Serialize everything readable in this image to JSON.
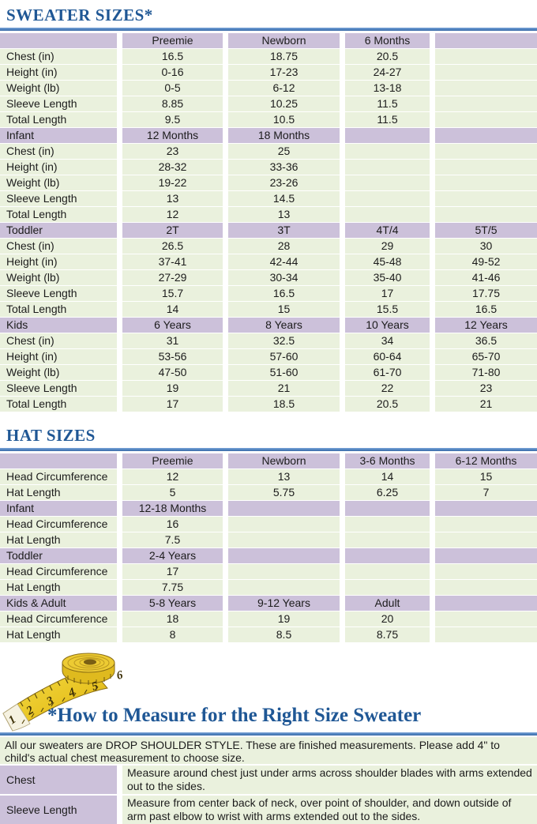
{
  "colors": {
    "heading_text": "#1F5795",
    "rule_blue": "#4F81BD",
    "band_purple": "#CCC1DA",
    "cell_green": "#EAF1DD",
    "tape_yellow": "#EDCB33"
  },
  "sweater": {
    "title": "SWEATER SIZES*",
    "measure_labels": [
      "Chest (in)",
      "Height (in)",
      "Weight (lb)",
      "Sleeve Length",
      "Total Length"
    ],
    "groups": [
      {
        "band_label": "",
        "sizes": [
          "Preemie",
          "Newborn",
          "6 Months",
          ""
        ],
        "values": [
          [
            "16.5",
            "18.75",
            "20.5",
            ""
          ],
          [
            "0-16",
            "17-23",
            "24-27",
            ""
          ],
          [
            "0-5",
            "6-12",
            "13-18",
            ""
          ],
          [
            "8.85",
            "10.25",
            "11.5",
            ""
          ],
          [
            "9.5",
            "10.5",
            "11.5",
            ""
          ]
        ]
      },
      {
        "band_label": "Infant",
        "sizes": [
          "12 Months",
          "18 Months",
          "",
          ""
        ],
        "values": [
          [
            "23",
            "25",
            "",
            ""
          ],
          [
            "28-32",
            "33-36",
            "",
            ""
          ],
          [
            "19-22",
            "23-26",
            "",
            ""
          ],
          [
            "13",
            "14.5",
            "",
            ""
          ],
          [
            "12",
            "13",
            "",
            ""
          ]
        ]
      },
      {
        "band_label": "Toddler",
        "sizes": [
          "2T",
          "3T",
          "4T/4",
          "5T/5"
        ],
        "values": [
          [
            "26.5",
            "28",
            "29",
            "30"
          ],
          [
            "37-41",
            "42-44",
            "45-48",
            "49-52"
          ],
          [
            "27-29",
            "30-34",
            "35-40",
            "41-46"
          ],
          [
            "15.7",
            "16.5",
            "17",
            "17.75"
          ],
          [
            "14",
            "15",
            "15.5",
            "16.5"
          ]
        ]
      },
      {
        "band_label": "Kids",
        "sizes": [
          "6 Years",
          "8 Years",
          "10 Years",
          "12 Years"
        ],
        "values": [
          [
            "31",
            "32.5",
            "34",
            "36.5"
          ],
          [
            "53-56",
            "57-60",
            "60-64",
            "65-70"
          ],
          [
            "47-50",
            "51-60",
            "61-70",
            "71-80"
          ],
          [
            "19",
            "21",
            "22",
            "23"
          ],
          [
            "17",
            "18.5",
            "20.5",
            "21"
          ]
        ]
      }
    ]
  },
  "hat": {
    "title": "HAT SIZES",
    "measure_labels": [
      "Head Circumference",
      "Hat Length"
    ],
    "groups": [
      {
        "band_label": "",
        "sizes": [
          "Preemie",
          "Newborn",
          "3-6 Months",
          "6-12 Months"
        ],
        "values": [
          [
            "12",
            "13",
            "14",
            "15"
          ],
          [
            "5",
            "5.75",
            "6.25",
            "7"
          ]
        ]
      },
      {
        "band_label": "Infant",
        "sizes": [
          "12-18 Months",
          "",
          "",
          ""
        ],
        "values": [
          [
            "16",
            "",
            "",
            ""
          ],
          [
            "7.5",
            "",
            "",
            ""
          ]
        ]
      },
      {
        "band_label": "Toddler",
        "sizes": [
          "2-4 Years",
          "",
          "",
          ""
        ],
        "values": [
          [
            "17",
            "",
            "",
            ""
          ],
          [
            "7.75",
            "",
            "",
            ""
          ]
        ]
      },
      {
        "band_label": "Kids & Adult",
        "sizes": [
          "5-8 Years",
          "9-12 Years",
          "Adult",
          ""
        ],
        "values": [
          [
            "18",
            "19",
            "20",
            ""
          ],
          [
            "8",
            "8.5",
            "8.75",
            ""
          ]
        ]
      }
    ]
  },
  "measure_section": {
    "title": "*How to Measure for the Right Size Sweater",
    "intro": "All our sweaters are DROP SHOULDER STYLE.  These are finished measurements.  Please add 4\" to child's actual chest measurement to choose size.",
    "rows": [
      {
        "label": "Chest",
        "text": "Measure around chest just under arms across shoulder blades with arms extended out to the sides."
      },
      {
        "label": "Sleeve Length",
        "text": "Measure from center back of neck, over point of shoulder, and down outside of arm past elbow to wrist with arms extended out to the sides."
      }
    ]
  },
  "tape": {
    "numbers": [
      "1",
      "2",
      "3",
      "4",
      "5",
      "6"
    ]
  }
}
